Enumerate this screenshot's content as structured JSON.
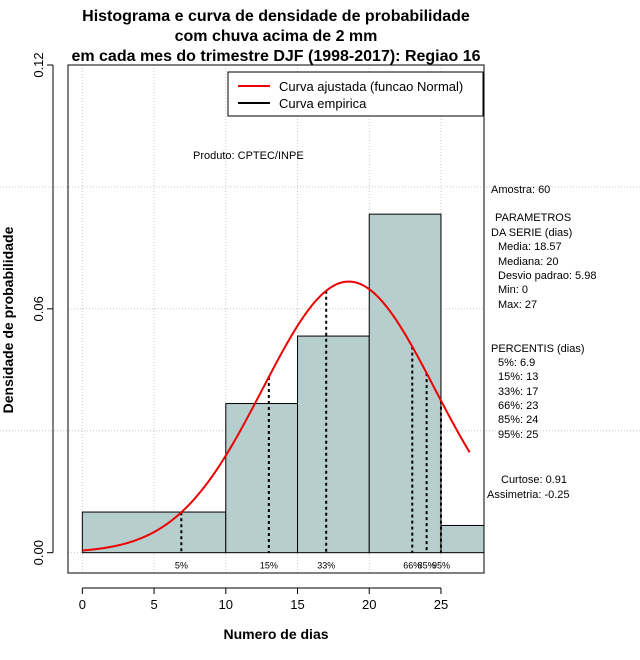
{
  "chart_data": {
    "type": "histogram",
    "title_lines": [
      "Histograma e curva de densidade de probabilidade",
      "com chuva acima de 2 mm",
      "em cada mes do trimestre DJF (1998-2017): Regiao 16"
    ],
    "xlabel": "Numero de dias",
    "ylabel": "Densidade de probabilidade",
    "xlim": [
      -1,
      28
    ],
    "ylim": [
      -0.005,
      0.12
    ],
    "x_ticks": [
      0,
      5,
      10,
      15,
      20,
      25
    ],
    "x_tick_labels": [
      "0",
      "5",
      "10",
      "15",
      "20",
      "25"
    ],
    "y_ticks": [
      0.0,
      0.06,
      0.12
    ],
    "y_tick_labels": [
      "0.00",
      "0.06",
      "0.12"
    ],
    "bars": [
      {
        "x0": 0,
        "x1": 10,
        "density": 0.01
      },
      {
        "x0": 10,
        "x1": 15,
        "density": 0.0367
      },
      {
        "x0": 15,
        "x1": 20,
        "density": 0.0533
      },
      {
        "x0": 20,
        "x1": 25,
        "density": 0.0833
      },
      {
        "x0": 25,
        "x1": 28,
        "density": 0.0067
      }
    ],
    "bar_color": "#b6cece",
    "normal_curve": {
      "mean": 18.57,
      "sd": 5.98,
      "x_range": [
        0,
        27
      ],
      "color": "#ee0000"
    },
    "percentile_lines": [
      {
        "label": "5%",
        "x": 6.9
      },
      {
        "label": "15%",
        "x": 13
      },
      {
        "label": "33%",
        "x": 17
      },
      {
        "label": "66%",
        "x": 23
      },
      {
        "label": "85%",
        "x": 24
      },
      {
        "label": "95%",
        "x": 25
      }
    ],
    "legend": [
      {
        "label": "Curva ajustada (funcao Normal)",
        "color": "#ee0000"
      },
      {
        "label": "Curva empirica",
        "color": "#000000"
      }
    ],
    "product_text": "Produto: CPTEC/INPE",
    "stats_text": [
      "Amostra: 60",
      "PARAMETROS",
      "DA SERIE (dias)",
      "Media: 18.57",
      "Mediana: 20",
      "Desvio padrao: 5.98",
      "Min: 0",
      "Max: 27",
      "PERCENTIS (dias)",
      "5%: 6.9",
      "15%: 13",
      "33%: 17",
      "66%: 23",
      "85%: 24",
      "95%: 25",
      "Curtose: 0.91",
      "Assimetria: -0.25"
    ]
  }
}
